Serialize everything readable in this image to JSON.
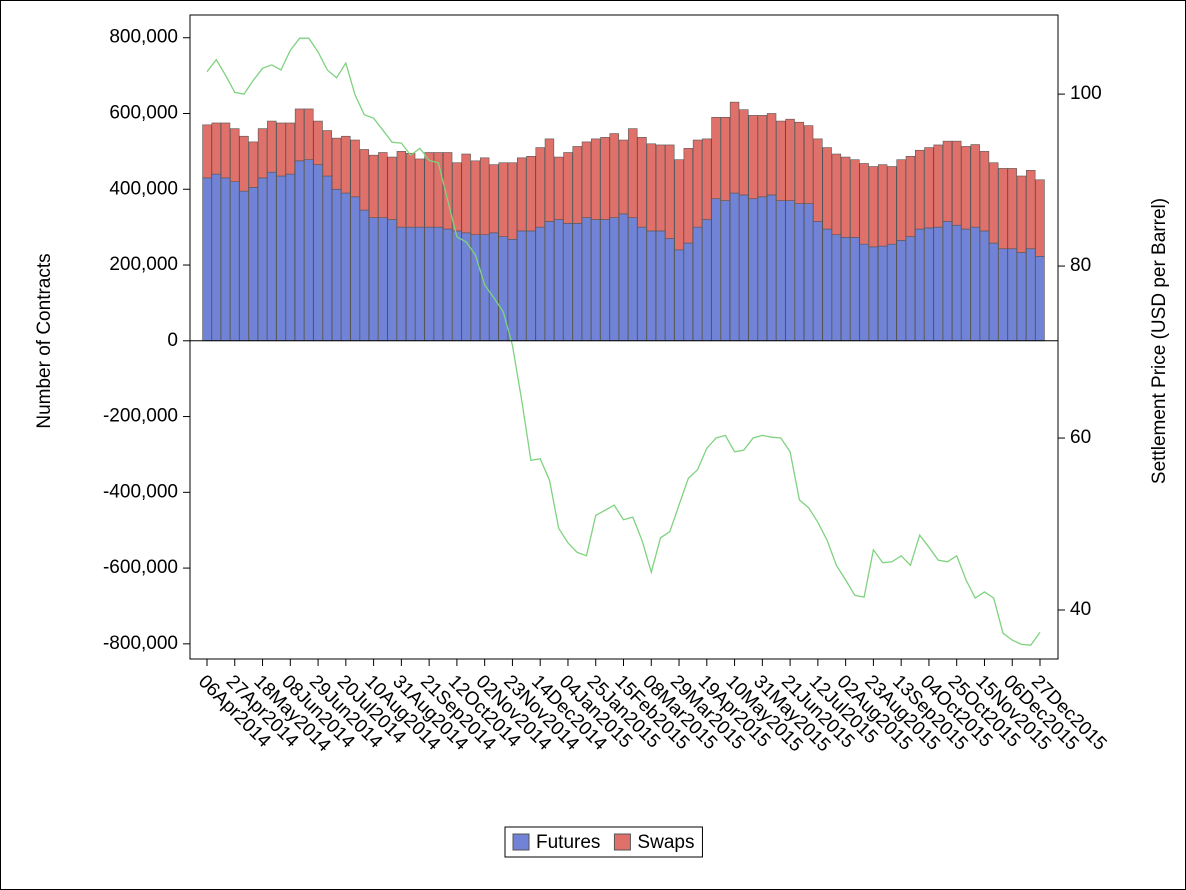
{
  "chart_data": {
    "type": "bar",
    "stacked": true,
    "y_label": "Number of Contracts",
    "y2_label": "Settlement Price (USD per Barrel)",
    "categories": [
      "06Apr2014",
      null,
      null,
      "27Apr2014",
      null,
      null,
      "18May2014",
      null,
      null,
      "08Jun2014",
      null,
      null,
      "29Jun2014",
      null,
      null,
      "20Jul2014",
      null,
      null,
      "10Aug2014",
      null,
      null,
      "31Aug2014",
      null,
      null,
      "21Sep2014",
      null,
      null,
      "12Oct2014",
      null,
      null,
      "02Nov2014",
      null,
      null,
      "23Nov2014",
      null,
      null,
      "14Dec2014",
      null,
      null,
      "04Jan2015",
      null,
      null,
      "25Jan2015",
      null,
      null,
      "15Feb2015",
      null,
      null,
      "08Mar2015",
      null,
      null,
      "29Mar2015",
      null,
      null,
      "19Apr2015",
      null,
      null,
      "10May2015",
      null,
      null,
      "31May2015",
      null,
      null,
      "21Jun2015",
      null,
      null,
      "12Jul2015",
      null,
      null,
      "02Aug2015",
      null,
      null,
      "23Aug2015",
      null,
      null,
      "13Sep2015",
      null,
      null,
      "04Oct2015",
      null,
      null,
      "25Oct2015",
      null,
      null,
      "15Nov2015",
      null,
      null,
      "06Dec2015",
      null,
      null,
      "27Dec2015"
    ],
    "series": [
      {
        "name": "Futures",
        "color": "#7083d6",
        "values": [
          430000,
          440000,
          430000,
          420000,
          395000,
          405000,
          430000,
          445000,
          435000,
          440000,
          475000,
          478000,
          465000,
          435000,
          400000,
          390000,
          380000,
          345000,
          325000,
          325000,
          320000,
          300000,
          300000,
          300000,
          300000,
          300000,
          295000,
          290000,
          285000,
          280000,
          280000,
          285000,
          275000,
          268000,
          290000,
          290000,
          300000,
          315000,
          320000,
          310000,
          310000,
          325000,
          320000,
          320000,
          325000,
          335000,
          325000,
          300000,
          290000,
          290000,
          270000,
          240000,
          258000,
          300000,
          320000,
          375000,
          370000,
          390000,
          385000,
          375000,
          380000,
          385000,
          370000,
          370000,
          362000,
          362000,
          315000,
          295000,
          280000,
          273000,
          273000,
          255000,
          248000,
          250000,
          255000,
          265000,
          275000,
          295000,
          298000,
          300000,
          315000,
          305000,
          295000,
          300000,
          290000,
          258000,
          243000,
          243000,
          233000,
          243000,
          223000
        ]
      },
      {
        "name": "Swaps",
        "color": "#e0706a",
        "values": [
          140000,
          135000,
          145000,
          140000,
          145000,
          120000,
          130000,
          135000,
          140000,
          135000,
          137000,
          134000,
          115000,
          120000,
          135000,
          150000,
          150000,
          160000,
          165000,
          172000,
          165000,
          200000,
          195000,
          180000,
          197000,
          197000,
          202000,
          180000,
          208000,
          195000,
          203000,
          180000,
          195000,
          202000,
          193000,
          197000,
          210000,
          218000,
          165000,
          187000,
          203000,
          200000,
          213000,
          217000,
          222000,
          195000,
          235000,
          237000,
          230000,
          227000,
          247000,
          238000,
          250000,
          230000,
          213000,
          215000,
          220000,
          240000,
          225000,
          220000,
          215000,
          215000,
          210000,
          215000,
          215000,
          206000,
          218000,
          215000,
          213000,
          212000,
          205000,
          213000,
          212000,
          215000,
          205000,
          213000,
          212000,
          208000,
          212000,
          217000,
          212000,
          222000,
          218000,
          218000,
          210000,
          212000,
          212000,
          212000,
          202000,
          207000,
          202000
        ]
      },
      {
        "type": "line",
        "axis": "y2",
        "color": "#7fd27f",
        "values": [
          102.6,
          104,
          102.2,
          100.2,
          100,
          101.6,
          103,
          103.4,
          102.8,
          105.1,
          106.5,
          106.5,
          104.9,
          102.8,
          101.9,
          103.6,
          99.9,
          97.6,
          97.2,
          95.8,
          94.4,
          94.3,
          92.9,
          93.7,
          92.3,
          92,
          87.7,
          83.4,
          82.8,
          81.3,
          77.8,
          76.3,
          74.7,
          70.8,
          64.4,
          57.4,
          57.6,
          55.1,
          49.5,
          47.8,
          46.7,
          46.3,
          51,
          51.6,
          52.2,
          50.5,
          50.8,
          48.1,
          44.4,
          48.4,
          49.1,
          52.2,
          55.3,
          56.3,
          58.8,
          60,
          60.3,
          58.4,
          58.6,
          60,
          60.3,
          60.1,
          60,
          58.4,
          52.8,
          51.9,
          50.2,
          48.1,
          45.2,
          43.5,
          41.7,
          41.5,
          47,
          45.5,
          45.6,
          46.3,
          45.2,
          48.7,
          47.3,
          45.8,
          45.6,
          46.3,
          43.5,
          41.4,
          42.1,
          41.4,
          37.3,
          36.5,
          36,
          35.9,
          37.4
        ]
      }
    ],
    "ylim": [
      -840000,
      860000
    ],
    "yticks": [
      {
        "value": -800000,
        "label": "-800,000"
      },
      {
        "value": -600000,
        "label": "-600,000"
      },
      {
        "value": -400000,
        "label": "-400,000"
      },
      {
        "value": -200000,
        "label": "-200,000"
      },
      0,
      {
        "value": 200000,
        "label": "200,000"
      },
      {
        "value": 400000,
        "label": "400,000"
      },
      {
        "value": 600000,
        "label": "600,000"
      },
      {
        "value": 800000,
        "label": "800,000"
      }
    ],
    "y2lim": [
      34.3,
      109.2
    ],
    "y2ticks": [
      40,
      60,
      80,
      100
    ],
    "legend": "bottom"
  }
}
